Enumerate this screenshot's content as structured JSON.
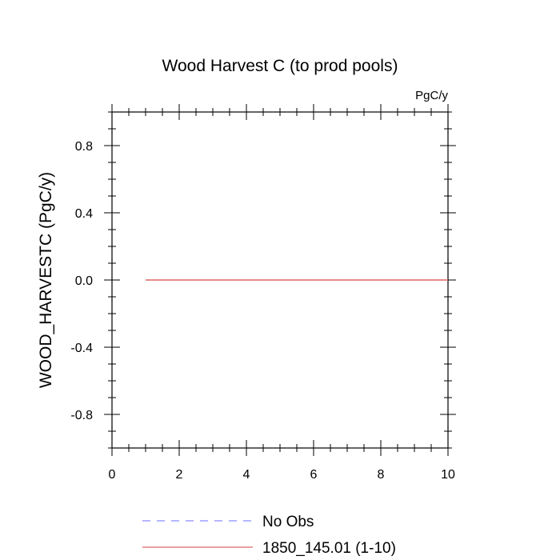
{
  "chart_data": {
    "type": "line",
    "title": "Wood Harvest C (to prod pools)",
    "units": "PgC/y",
    "ylabel": "WOOD_HARVESTC  (PgC/y)",
    "xlabel": "",
    "xlim": [
      0,
      10
    ],
    "ylim": [
      -1,
      1
    ],
    "x_ticks": [
      0,
      2,
      4,
      6,
      8,
      10
    ],
    "x_tick_labels": [
      "0",
      "2",
      "4",
      "6",
      "8",
      "10"
    ],
    "y_ticks": [
      0.8,
      0.4,
      0.0,
      -0.4,
      -0.8
    ],
    "y_tick_labels": [
      "0.8",
      "0.4",
      "0.0",
      "-0.4",
      "-0.8"
    ],
    "grid": false,
    "legend_position": "bottom",
    "series": [
      {
        "name": "No Obs",
        "color": "#8a8aff",
        "dash": "dashed",
        "x": [],
        "y": []
      },
      {
        "name": "1850_145.01 (1-10)",
        "color": "#e06666",
        "dash": "solid",
        "x": [
          1,
          2,
          3,
          4,
          5,
          6,
          7,
          8,
          9,
          10
        ],
        "y": [
          0,
          0,
          0,
          0,
          0,
          0,
          0,
          0,
          0,
          0
        ]
      }
    ]
  }
}
